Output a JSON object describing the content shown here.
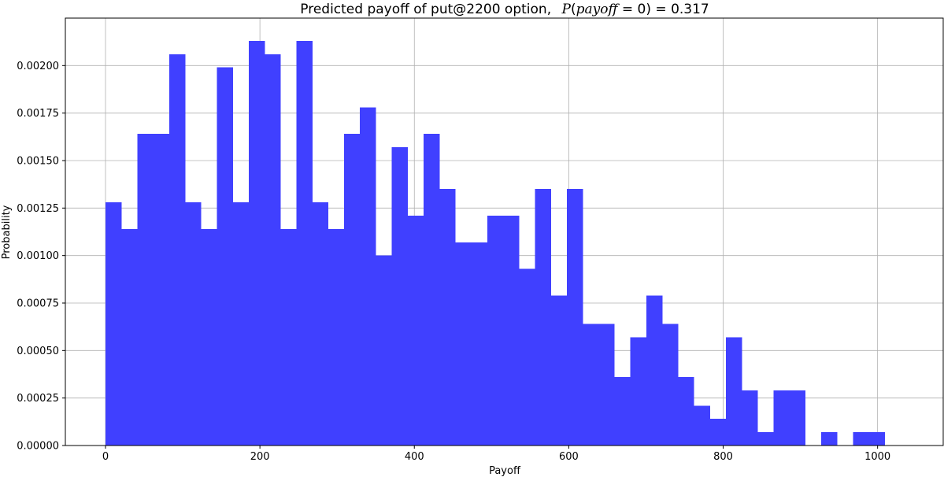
{
  "chart_data": {
    "type": "bar",
    "title": "Predicted payoff of put@2200 option,",
    "title_math": "P(payoff) = 0.317",
    "title_math_parts": {
      "prefix": "P",
      "lparen": "(",
      "var": "payoff",
      "eq_zero": " = 0",
      "rparen": ")",
      "value": " = 0.317"
    },
    "xlabel": "Payoff",
    "ylabel": "Probability",
    "xlim": [
      -52,
      1085
    ],
    "ylim": [
      0,
      0.00225
    ],
    "grid": true,
    "bar_color": "#4040ff",
    "bin_width": 20.6,
    "bin_start": 0,
    "values": [
      0.00128,
      0.00114,
      0.00164,
      0.00164,
      0.00206,
      0.00128,
      0.00114,
      0.00199,
      0.00128,
      0.00213,
      0.00206,
      0.00114,
      0.00213,
      0.00128,
      0.00114,
      0.00164,
      0.00178,
      0.001,
      0.00157,
      0.00121,
      0.00164,
      0.00135,
      0.00107,
      0.00107,
      0.00121,
      0.00121,
      0.00093,
      0.00135,
      0.00079,
      0.00135,
      0.00064,
      0.00064,
      0.00036,
      0.00057,
      0.00079,
      0.00064,
      0.00036,
      0.00021,
      0.00014,
      0.00057,
      0.00029,
      7e-05,
      0.00029,
      0.00029,
      0.0,
      7e-05,
      0.0,
      7e-05,
      7e-05
    ],
    "xticks": [
      {
        "value": 0,
        "label": "0"
      },
      {
        "value": 200,
        "label": "200"
      },
      {
        "value": 400,
        "label": "400"
      },
      {
        "value": 600,
        "label": "600"
      },
      {
        "value": 800,
        "label": "800"
      },
      {
        "value": 1000,
        "label": "1000"
      }
    ],
    "yticks": [
      {
        "value": 0.0,
        "label": "0.00000"
      },
      {
        "value": 0.00025,
        "label": "0.00025"
      },
      {
        "value": 0.0005,
        "label": "0.00050"
      },
      {
        "value": 0.00075,
        "label": "0.00075"
      },
      {
        "value": 0.001,
        "label": "0.00100"
      },
      {
        "value": 0.00125,
        "label": "0.00125"
      },
      {
        "value": 0.0015,
        "label": "0.00150"
      },
      {
        "value": 0.00175,
        "label": "0.00175"
      },
      {
        "value": 0.002,
        "label": "0.00200"
      }
    ]
  }
}
